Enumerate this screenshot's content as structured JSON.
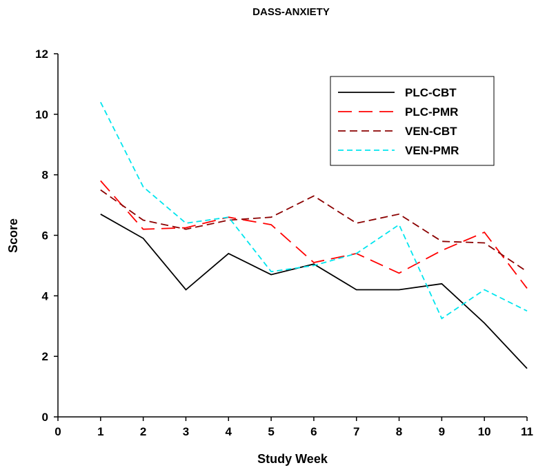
{
  "chart_data": {
    "type": "line",
    "title": "DASS-ANXIETY",
    "xlabel": "Study Week",
    "ylabel": "Score",
    "xlim": [
      0,
      11
    ],
    "ylim": [
      0,
      12
    ],
    "x_ticks": [
      0,
      1,
      2,
      3,
      4,
      5,
      6,
      7,
      8,
      9,
      10,
      11
    ],
    "y_ticks": [
      0,
      2,
      4,
      6,
      8,
      10,
      12
    ],
    "grid": false,
    "legend_position": "top-right",
    "x": [
      1,
      2,
      3,
      4,
      5,
      6,
      7,
      8,
      9,
      10,
      11
    ],
    "series": [
      {
        "name": "PLC-CBT",
        "color": "#000000",
        "dash": "solid",
        "values": [
          6.7,
          5.9,
          4.2,
          5.4,
          4.7,
          5.05,
          4.2,
          4.2,
          4.4,
          3.1,
          1.6
        ]
      },
      {
        "name": "PLC-PMR",
        "color": "#ff0000",
        "dash": "long-dash",
        "values": [
          7.8,
          6.2,
          6.25,
          6.6,
          6.35,
          5.1,
          5.4,
          4.75,
          5.5,
          6.1,
          4.25
        ]
      },
      {
        "name": "VEN-CBT",
        "color": "#8b0000",
        "dash": "dash",
        "values": [
          7.5,
          6.5,
          6.2,
          6.5,
          6.6,
          7.3,
          6.4,
          6.7,
          5.8,
          5.75,
          4.8
        ]
      },
      {
        "name": "VEN-PMR",
        "color": "#00e5ee",
        "dash": "short-dash",
        "values": [
          10.4,
          7.6,
          6.4,
          6.6,
          4.8,
          5.0,
          5.4,
          6.35,
          3.25,
          4.2,
          3.5
        ]
      }
    ]
  }
}
